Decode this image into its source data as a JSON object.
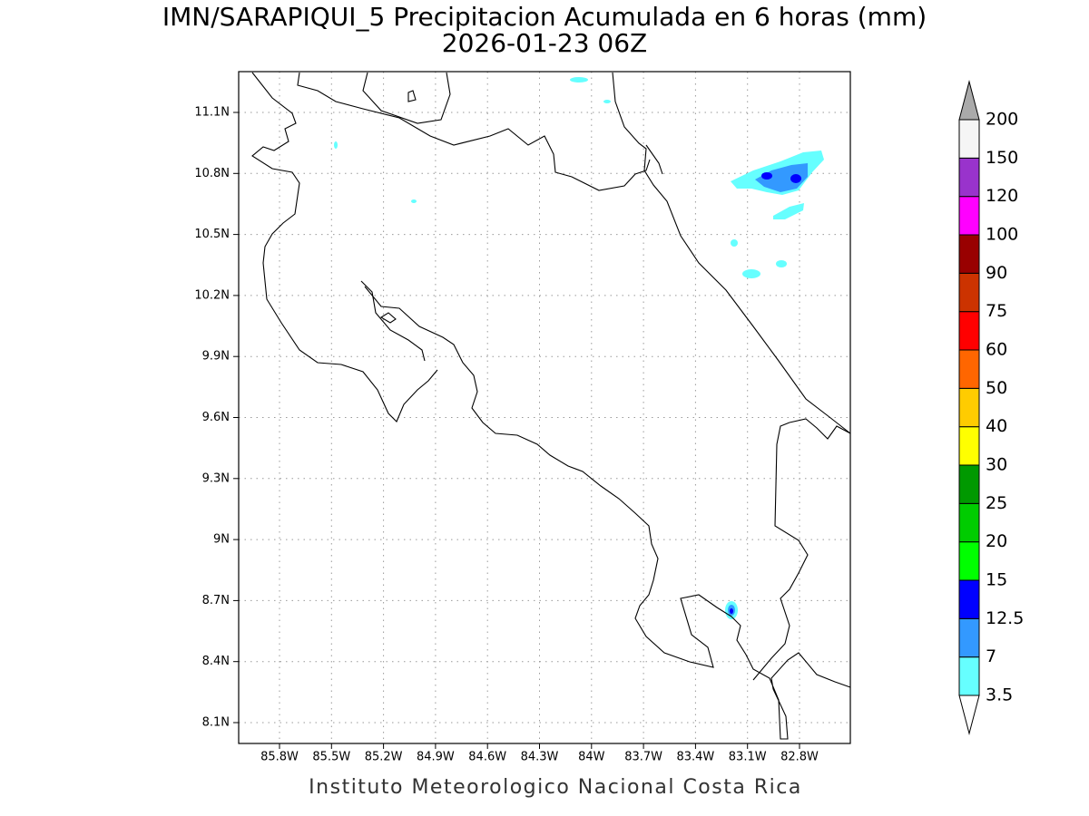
{
  "title": "IMN/SARAPIQUI_5 Precipitacion Acumulada en 6 horas (mm)",
  "subtitle": "2026-01-23 06Z",
  "map": {
    "xticks": [
      "85.8W",
      "85.5W",
      "85.2W",
      "84.9W",
      "84.6W",
      "84.3W",
      "84W",
      "83.7W",
      "83.4W",
      "83.1W",
      "82.8W"
    ],
    "yticks": [
      "11.1N",
      "10.8N",
      "10.5N",
      "10.2N",
      "9.9N",
      "9.6N",
      "9.3N",
      "9N",
      "8.7N",
      "8.4N",
      "8.1N"
    ]
  },
  "colorbar": {
    "levels": [
      3.5,
      7,
      12.5,
      15,
      20,
      25,
      30,
      40,
      50,
      60,
      75,
      90,
      100,
      120,
      150,
      200
    ],
    "colors": [
      "#ffffff",
      "#66ffff",
      "#3399ff",
      "#0000ff",
      "#00ff00",
      "#00cc00",
      "#009900",
      "#ffff00",
      "#ffcc00",
      "#ff6600",
      "#ff0000",
      "#cc3300",
      "#990000",
      "#ff00ff",
      "#9933cc",
      "#f5f5f5",
      "#aaaaaa"
    ]
  },
  "footer": "Instituto Meteorologico Nacional Costa Rica"
}
